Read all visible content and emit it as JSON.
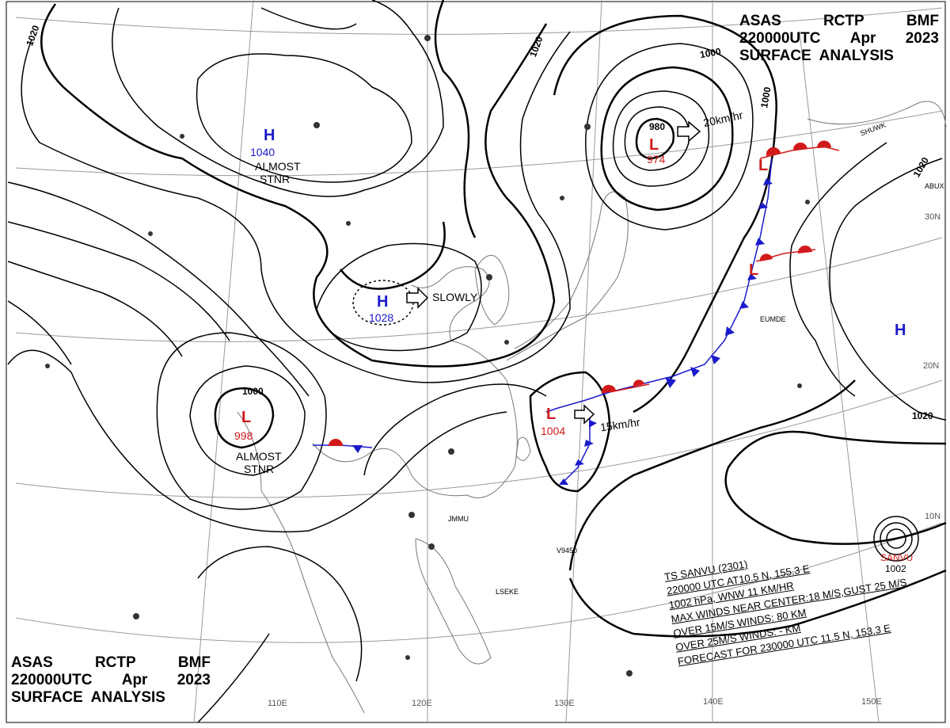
{
  "header": {
    "line1": [
      "ASAS",
      "RCTP",
      "BMF"
    ],
    "line2": [
      "220000UTC",
      "Apr",
      "2023"
    ],
    "line3": "SURFACE  ANALYSIS"
  },
  "systems": {
    "high_northwest": {
      "symbol": "H",
      "pressure": "1040",
      "note1": "ALMOST",
      "note2": "STNR"
    },
    "high_center": {
      "symbol": "H",
      "pressure": "1028",
      "motion": "SLOWLY"
    },
    "low_west": {
      "symbol": "L",
      "pressure": "998",
      "note1": "ALMOST",
      "note2": "STNR"
    },
    "low_northeast": {
      "symbol": "L",
      "pressure": "974",
      "motion": "20km/hr"
    },
    "low_east_china_sea": {
      "symbol": "L",
      "pressure": "1004",
      "motion": "15km/hr"
    },
    "high_east": {
      "symbol": "H"
    },
    "front_low_1": {
      "symbol": "L"
    },
    "front_low_2": {
      "symbol": "L"
    },
    "typhoon": {
      "name": "SANVU",
      "pressure": "1002"
    }
  },
  "isobar_labels": [
    "1020",
    "1020",
    "1000",
    "1000",
    "1000",
    "980",
    "1020",
    "1020"
  ],
  "storm_info": [
    "TS  SANVU  (2301)",
    "220000 UTC  AT10.5 N, 155.3 E",
    "1002 hPa, WNW  11 KM/HR",
    "MAX WINDS NEAR CENTER:18 M/S,GUST 25 M/S",
    "OVER 15M/S WINDS:  80 KM",
    "OVER 25M/S WINDS:  - KM",
    "FORECAST FOR 230000 UTC 11.5 N, 153.3 E"
  ],
  "longitude_labels": [
    "110E",
    "120E",
    "130E",
    "140E",
    "150E"
  ],
  "latitude_labels": [
    "30N",
    "20N",
    "10N"
  ],
  "station_labels": [
    "JMMU",
    "LSEKE",
    "V9450",
    "EUMDE",
    "SHUWK",
    "ABUX"
  ],
  "colors": {
    "high": "#1a1acc",
    "low": "#d01a1a",
    "cold_front": "#1a1acc",
    "warm_front": "#d01a1a"
  }
}
